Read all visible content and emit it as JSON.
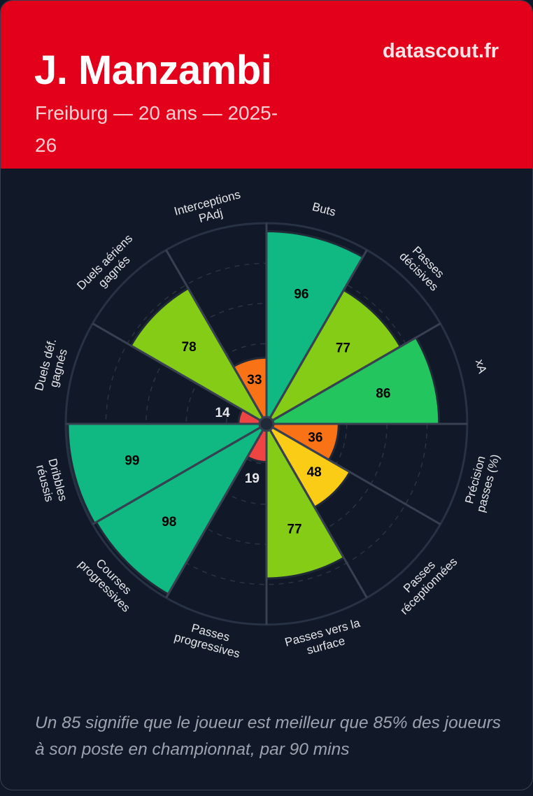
{
  "header": {
    "player_name": "J. Manzambi",
    "subtitle": "Freiburg — 20 ans — 2025-26",
    "brand": "datascout.fr",
    "background_color": "#e2001a"
  },
  "chart_data": {
    "type": "pie",
    "subtype": "pizza-percentile",
    "range": [
      0,
      100
    ],
    "gridlines": [
      20,
      40,
      60,
      80,
      100
    ],
    "categories": [
      "Buts",
      "Passes\ndécisives",
      "xA",
      "Précision\npasses (%)",
      "Passes\nréceptionnées",
      "Passes vers la\nsurface",
      "Passes\nprogressives",
      "Courses\nprogressives",
      "Dribbles\nréussis",
      "Duels déf.\ngagnés",
      "Duels aériens\ngagnés",
      "Interceptions\nPAdj"
    ],
    "values": [
      96,
      77,
      86,
      36,
      48,
      77,
      19,
      98,
      99,
      14,
      78,
      33
    ],
    "color_scale": [
      {
        "min": 90,
        "color": "#10b981"
      },
      {
        "min": 80,
        "color": "#22c55e"
      },
      {
        "min": 60,
        "color": "#84cc16"
      },
      {
        "min": 40,
        "color": "#facc15"
      },
      {
        "min": 25,
        "color": "#f97316"
      },
      {
        "min": 0,
        "color": "#ef4444"
      }
    ]
  },
  "footer": {
    "note": "Un 85 signifie que le joueur est meilleur que 85% des joueurs à son poste en championnat, par 90 mins"
  }
}
